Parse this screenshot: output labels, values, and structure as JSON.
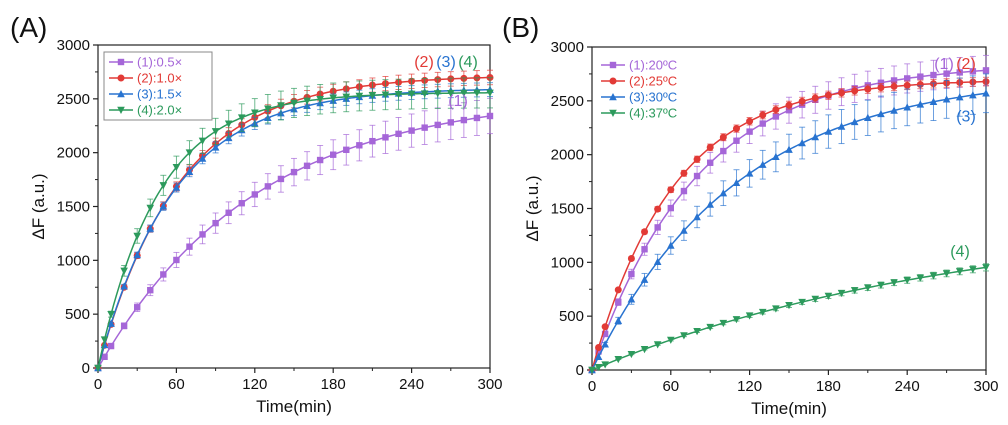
{
  "chart_data": [
    {
      "panel": "(A)",
      "type": "line",
      "xlabel": "Time(min)",
      "ylabel": "ΔF (a.u.)",
      "xlim": [
        0,
        300
      ],
      "ylim": [
        0,
        3000
      ],
      "xticks": [
        0,
        60,
        120,
        180,
        240,
        300
      ],
      "yticks": [
        0,
        500,
        1000,
        1500,
        2000,
        2500,
        3000
      ],
      "legend_position": "top-left",
      "legend_style": "boxed",
      "series": [
        {
          "name": "(1):0.5×",
          "legend_label": "(1):0.5×",
          "annotation": "(1)",
          "color": "#a566d8",
          "marker": "square",
          "Fmax": 2550,
          "tau": 120,
          "error_frac": 0.07
        },
        {
          "name": "(2):1.0×",
          "legend_label": "(2):1.0×",
          "annotation": "(2)",
          "color": "#e23a36",
          "marker": "circle",
          "Fmax": 2720,
          "tau": 62,
          "error_frac": 0.025
        },
        {
          "name": "(3):1.5×",
          "legend_label": "(3):1.5×",
          "annotation": "(3)",
          "color": "#2873d0",
          "marker": "triangle-up",
          "Fmax": 2600,
          "tau": 58,
          "error_frac": 0.025
        },
        {
          "name": "(4):2.0×",
          "legend_label": "(4):2.0×",
          "annotation": "(4)",
          "color": "#2c9a5c",
          "marker": "triangle-down",
          "Fmax": 2560,
          "tau": 46,
          "error_frac": 0.055
        }
      ]
    },
    {
      "panel": "(B)",
      "type": "line",
      "xlabel": "Time(min)",
      "ylabel": "ΔF (a.u.)",
      "xlim": [
        0,
        300
      ],
      "ylim": [
        0,
        3000
      ],
      "xticks": [
        0,
        60,
        120,
        180,
        240,
        300
      ],
      "yticks": [
        0,
        500,
        1000,
        1500,
        2000,
        2500,
        3000
      ],
      "legend_position": "top-left",
      "legend_style": "plain",
      "series": [
        {
          "name": "(1):20°C",
          "legend_label": "(1):20ºC",
          "annotation": "(1)",
          "color": "#a566d8",
          "marker": "square",
          "Fmax": 2850,
          "tau": 80,
          "error_frac": 0.05
        },
        {
          "name": "(2):25°C",
          "legend_label": "(2):25ºC",
          "annotation": "(2)",
          "color": "#e23a36",
          "marker": "circle",
          "Fmax": 2700,
          "tau": 62,
          "error_frac": 0.015
        },
        {
          "name": "(3):30°C",
          "legend_label": "(3):30ºC",
          "annotation": "(3)",
          "color": "#2873d0",
          "marker": "triangle-up",
          "Fmax": 2750,
          "tau": 110,
          "error_frac": 0.07
        },
        {
          "name": "(4):37°C",
          "legend_label": "(4):37ºC",
          "annotation": "(4)",
          "color": "#2c9a5c",
          "marker": "triangle-down",
          "Fmax": 1450,
          "tau": 280,
          "error_frac": 0.035
        }
      ]
    }
  ]
}
